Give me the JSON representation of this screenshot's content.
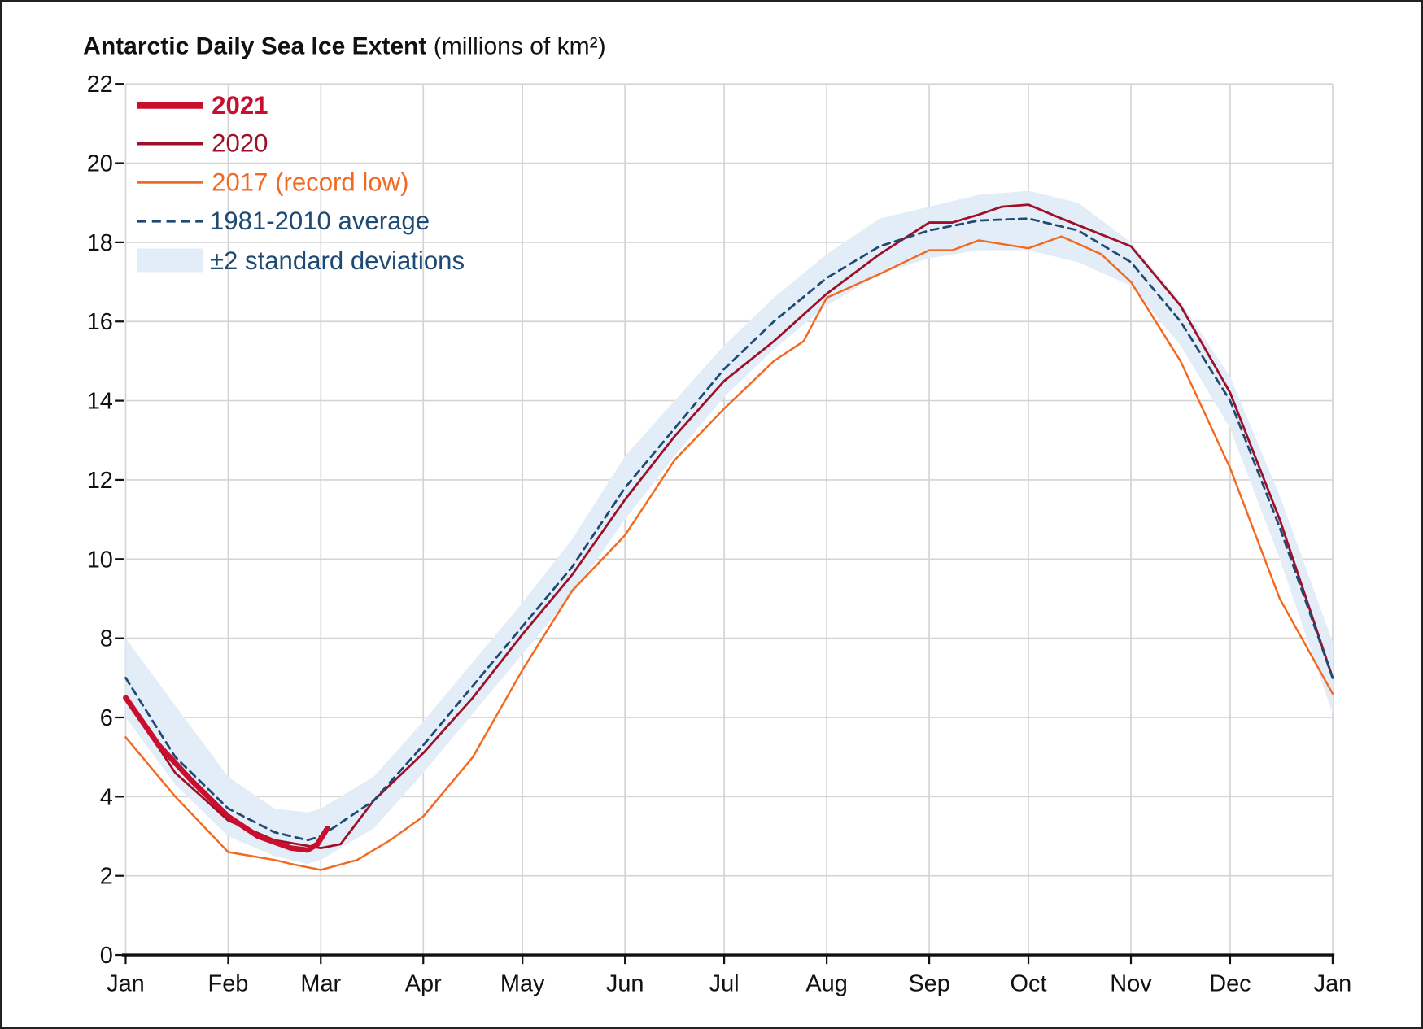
{
  "chart_data": {
    "type": "line",
    "title": "Antarctic Daily Sea Ice Extent",
    "title_unit": "(millions of km²)",
    "x_unit": "day of year",
    "xlim": [
      0,
      365
    ],
    "ylim": [
      0,
      22
    ],
    "grid": true,
    "legend_placement": "top-left",
    "x_tick_labels": [
      "Jan",
      "Feb",
      "Mar",
      "Apr",
      "May",
      "Jun",
      "Jul",
      "Aug",
      "Sep",
      "Oct",
      "Nov",
      "Dec",
      "Jan"
    ],
    "x_tick_days": [
      0,
      31,
      59,
      90,
      120,
      151,
      181,
      212,
      243,
      273,
      304,
      334,
      365
    ],
    "y_ticks": [
      0,
      2,
      4,
      6,
      8,
      10,
      12,
      14,
      16,
      18,
      20,
      22
    ],
    "colors": {
      "s2021": "#c8102e",
      "s2020": "#9e1028",
      "s2017": "#f26a22",
      "average": "#1f4a73",
      "band": "#e2edf8"
    },
    "band": {
      "name": "±2 standard deviations",
      "x": [
        0,
        15,
        31,
        45,
        55,
        59,
        75,
        90,
        105,
        120,
        135,
        151,
        166,
        181,
        196,
        212,
        228,
        243,
        258,
        273,
        288,
        304,
        319,
        334,
        349,
        365
      ],
      "upper": [
        8.0,
        6.3,
        4.5,
        3.7,
        3.6,
        3.7,
        4.5,
        5.9,
        7.4,
        8.9,
        10.5,
        12.6,
        14.0,
        15.4,
        16.6,
        17.7,
        18.6,
        18.9,
        19.2,
        19.3,
        19.0,
        18.0,
        16.5,
        14.6,
        11.6,
        7.9
      ],
      "lower": [
        6.0,
        4.3,
        3.0,
        2.5,
        2.3,
        2.4,
        3.2,
        4.6,
        6.1,
        7.6,
        9.1,
        11.0,
        12.6,
        14.1,
        15.3,
        16.4,
        17.2,
        17.6,
        17.8,
        17.8,
        17.5,
        16.9,
        15.4,
        13.3,
        10.0,
        6.1
      ]
    },
    "series": [
      {
        "name": "1981-2010 average",
        "key": "average",
        "x": [
          0,
          15,
          31,
          45,
          55,
          59,
          75,
          90,
          105,
          120,
          135,
          151,
          166,
          181,
          196,
          212,
          228,
          243,
          258,
          273,
          288,
          304,
          319,
          334,
          349,
          365
        ],
        "values": [
          7.0,
          5.0,
          3.7,
          3.1,
          2.9,
          3.0,
          3.9,
          5.3,
          6.8,
          8.3,
          9.8,
          11.8,
          13.3,
          14.8,
          16.0,
          17.1,
          17.9,
          18.3,
          18.55,
          18.6,
          18.3,
          17.5,
          16.0,
          14.0,
          10.8,
          7.0
        ]
      },
      {
        "name": "2017 (record low)",
        "key": "s2017",
        "x": [
          0,
          15,
          31,
          45,
          50,
          59,
          70,
          80,
          90,
          105,
          120,
          135,
          151,
          166,
          181,
          196,
          205,
          212,
          228,
          243,
          250,
          258,
          273,
          283,
          295,
          304,
          319,
          334,
          349,
          365
        ],
        "values": [
          5.5,
          4.0,
          2.6,
          2.4,
          2.3,
          2.15,
          2.4,
          2.9,
          3.5,
          5.0,
          7.2,
          9.2,
          10.6,
          12.5,
          13.8,
          15.0,
          15.5,
          16.6,
          17.2,
          17.8,
          17.8,
          18.05,
          17.85,
          18.15,
          17.7,
          17.0,
          15.0,
          12.3,
          9.0,
          6.6
        ]
      },
      {
        "name": "2020",
        "key": "s2020",
        "x": [
          0,
          15,
          31,
          45,
          59,
          65,
          75,
          90,
          105,
          120,
          135,
          151,
          166,
          181,
          196,
          212,
          228,
          243,
          250,
          258,
          265,
          273,
          283,
          295,
          304,
          319,
          334,
          349,
          365
        ],
        "values": [
          6.5,
          4.6,
          3.4,
          2.9,
          2.7,
          2.8,
          3.9,
          5.1,
          6.5,
          8.1,
          9.6,
          11.5,
          13.1,
          14.5,
          15.5,
          16.7,
          17.7,
          18.5,
          18.5,
          18.7,
          18.9,
          18.95,
          18.6,
          18.2,
          17.9,
          16.4,
          14.2,
          11.0,
          7.0
        ]
      },
      {
        "name": "2021",
        "key": "s2021",
        "x": [
          0,
          10,
          20,
          31,
          40,
          50,
          55,
          58,
          61
        ],
        "values": [
          6.5,
          5.3,
          4.4,
          3.5,
          3.0,
          2.7,
          2.65,
          2.8,
          3.2
        ]
      }
    ]
  }
}
